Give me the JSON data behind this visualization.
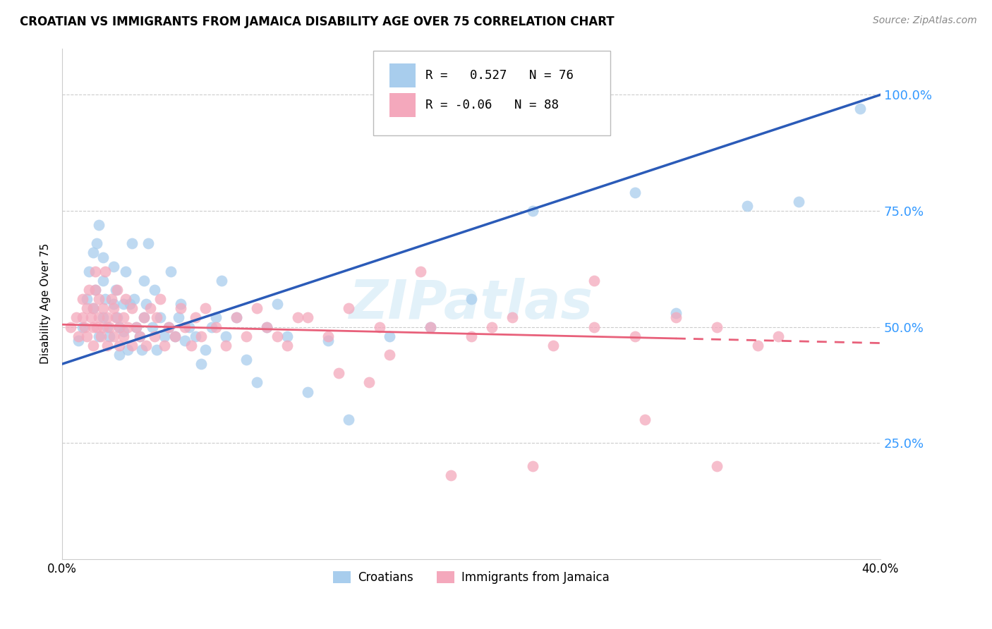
{
  "title": "CROATIAN VS IMMIGRANTS FROM JAMAICA DISABILITY AGE OVER 75 CORRELATION CHART",
  "source": "Source: ZipAtlas.com",
  "ylabel": "Disability Age Over 75",
  "xlim": [
    0.0,
    0.4
  ],
  "ylim": [
    0.0,
    1.1
  ],
  "yticks": [
    0.25,
    0.5,
    0.75,
    1.0
  ],
  "ytick_labels": [
    "25.0%",
    "50.0%",
    "75.0%",
    "100.0%"
  ],
  "xticks": [
    0.0,
    0.1,
    0.2,
    0.3,
    0.4
  ],
  "xtick_labels": [
    "0.0%",
    "",
    "",
    "",
    "40.0%"
  ],
  "blue_R": 0.527,
  "blue_N": 76,
  "pink_R": -0.06,
  "pink_N": 88,
  "blue_color": "#A8CDED",
  "pink_color": "#F4A8BC",
  "blue_line_color": "#2B5BB8",
  "pink_line_color": "#E8607A",
  "watermark": "ZIPatlas",
  "legend_label_blue": "Croatians",
  "legend_label_pink": "Immigrants from Jamaica",
  "blue_line_x0": 0.0,
  "blue_line_y0": 0.42,
  "blue_line_x1": 0.4,
  "blue_line_y1": 1.0,
  "pink_line_x0": 0.0,
  "pink_line_y0": 0.505,
  "pink_line_x1_solid": 0.3,
  "pink_line_y1_solid": 0.475,
  "pink_line_x1_dash": 0.4,
  "pink_line_y1_dash": 0.465,
  "blue_scatter_x": [
    0.008,
    0.01,
    0.012,
    0.013,
    0.015,
    0.015,
    0.016,
    0.017,
    0.018,
    0.018,
    0.02,
    0.02,
    0.02,
    0.021,
    0.022,
    0.023,
    0.025,
    0.025,
    0.026,
    0.027,
    0.028,
    0.028,
    0.03,
    0.03,
    0.031,
    0.032,
    0.033,
    0.034,
    0.035,
    0.036,
    0.038,
    0.039,
    0.04,
    0.04,
    0.041,
    0.042,
    0.044,
    0.045,
    0.046,
    0.048,
    0.05,
    0.052,
    0.053,
    0.055,
    0.057,
    0.058,
    0.06,
    0.062,
    0.065,
    0.068,
    0.07,
    0.073,
    0.075,
    0.078,
    0.08,
    0.085,
    0.09,
    0.095,
    0.1,
    0.105,
    0.11,
    0.12,
    0.13,
    0.14,
    0.16,
    0.18,
    0.2,
    0.23,
    0.255,
    0.257,
    0.258,
    0.28,
    0.3,
    0.335,
    0.36,
    0.39
  ],
  "blue_scatter_y": [
    0.47,
    0.5,
    0.56,
    0.62,
    0.54,
    0.66,
    0.58,
    0.68,
    0.72,
    0.48,
    0.52,
    0.6,
    0.65,
    0.56,
    0.5,
    0.48,
    0.55,
    0.63,
    0.58,
    0.52,
    0.5,
    0.44,
    0.49,
    0.55,
    0.62,
    0.45,
    0.55,
    0.68,
    0.56,
    0.5,
    0.48,
    0.45,
    0.52,
    0.6,
    0.55,
    0.68,
    0.5,
    0.58,
    0.45,
    0.52,
    0.48,
    0.5,
    0.62,
    0.48,
    0.52,
    0.55,
    0.47,
    0.5,
    0.48,
    0.42,
    0.45,
    0.5,
    0.52,
    0.6,
    0.48,
    0.52,
    0.43,
    0.38,
    0.5,
    0.55,
    0.48,
    0.36,
    0.47,
    0.3,
    0.48,
    0.5,
    0.56,
    0.75,
    0.97,
    0.97,
    0.97,
    0.79,
    0.53,
    0.76,
    0.77,
    0.97
  ],
  "pink_scatter_x": [
    0.004,
    0.007,
    0.008,
    0.01,
    0.01,
    0.011,
    0.012,
    0.012,
    0.013,
    0.014,
    0.015,
    0.015,
    0.015,
    0.016,
    0.016,
    0.017,
    0.018,
    0.018,
    0.019,
    0.02,
    0.02,
    0.021,
    0.022,
    0.022,
    0.023,
    0.024,
    0.025,
    0.025,
    0.026,
    0.027,
    0.028,
    0.028,
    0.03,
    0.03,
    0.031,
    0.032,
    0.034,
    0.034,
    0.036,
    0.038,
    0.04,
    0.041,
    0.043,
    0.045,
    0.046,
    0.048,
    0.05,
    0.052,
    0.055,
    0.058,
    0.06,
    0.063,
    0.065,
    0.068,
    0.07,
    0.075,
    0.08,
    0.085,
    0.09,
    0.095,
    0.1,
    0.11,
    0.12,
    0.13,
    0.14,
    0.15,
    0.16,
    0.18,
    0.2,
    0.22,
    0.24,
    0.26,
    0.28,
    0.3,
    0.32,
    0.34,
    0.26,
    0.285,
    0.32,
    0.35,
    0.19,
    0.21,
    0.23,
    0.175,
    0.155,
    0.135,
    0.115,
    0.105
  ],
  "pink_scatter_y": [
    0.5,
    0.52,
    0.48,
    0.52,
    0.56,
    0.5,
    0.48,
    0.54,
    0.58,
    0.52,
    0.46,
    0.5,
    0.54,
    0.58,
    0.62,
    0.5,
    0.52,
    0.56,
    0.48,
    0.5,
    0.54,
    0.62,
    0.52,
    0.46,
    0.5,
    0.56,
    0.48,
    0.54,
    0.52,
    0.58,
    0.46,
    0.5,
    0.48,
    0.52,
    0.56,
    0.5,
    0.46,
    0.54,
    0.5,
    0.48,
    0.52,
    0.46,
    0.54,
    0.48,
    0.52,
    0.56,
    0.46,
    0.5,
    0.48,
    0.54,
    0.5,
    0.46,
    0.52,
    0.48,
    0.54,
    0.5,
    0.46,
    0.52,
    0.48,
    0.54,
    0.5,
    0.46,
    0.52,
    0.48,
    0.54,
    0.38,
    0.44,
    0.5,
    0.48,
    0.52,
    0.46,
    0.5,
    0.48,
    0.52,
    0.5,
    0.46,
    0.6,
    0.3,
    0.2,
    0.48,
    0.18,
    0.5,
    0.2,
    0.62,
    0.5,
    0.4,
    0.52,
    0.48
  ]
}
